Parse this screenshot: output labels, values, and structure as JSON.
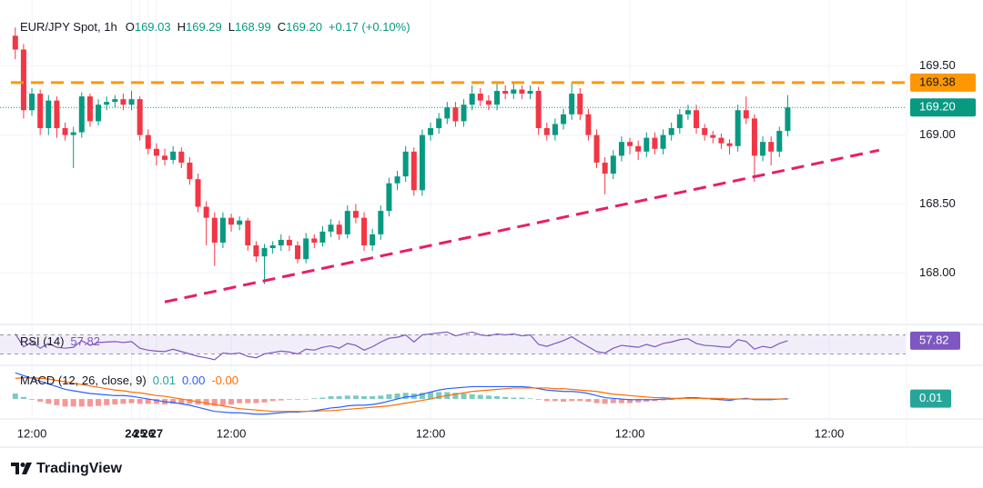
{
  "brand": "TradingView",
  "chart_data": {
    "type": "candlestick",
    "title": "EUR/JPY Spot, 1h",
    "legend": [
      {
        "key": "O",
        "value": "169.03"
      },
      {
        "key": "H",
        "value": "169.29"
      },
      {
        "key": "L",
        "value": "168.99"
      },
      {
        "key": "C",
        "value": "169.20"
      }
    ],
    "change": "+0.17 (+0.10%)",
    "x": [
      10,
      11,
      12,
      13,
      14,
      15,
      16,
      17,
      18,
      19,
      20,
      21,
      22,
      23,
      24,
      25,
      26,
      27,
      28,
      29,
      30,
      31,
      32,
      33,
      34,
      35,
      36,
      37,
      38,
      39,
      40,
      41,
      42,
      43,
      44,
      45,
      46,
      47,
      48,
      49,
      50,
      51,
      52,
      53,
      54,
      55,
      56,
      57,
      58,
      59,
      60,
      61,
      62,
      63,
      64,
      65,
      66,
      67,
      68,
      69,
      70,
      71,
      72,
      73,
      74,
      75,
      76,
      77,
      78,
      79,
      80,
      81,
      82,
      83,
      84,
      85,
      86,
      87,
      88,
      89,
      90,
      91,
      92,
      93,
      94,
      95,
      96,
      97,
      98,
      99,
      100,
      101,
      102,
      103
    ],
    "open": [
      169.72,
      169.62,
      169.18,
      169.3,
      169.05,
      169.25,
      169.05,
      169.0,
      169.02,
      169.28,
      169.1,
      169.22,
      169.24,
      169.26,
      169.22,
      169.26,
      169.0,
      168.9,
      168.85,
      168.82,
      168.88,
      168.8,
      168.68,
      168.48,
      168.4,
      168.22,
      168.4,
      168.35,
      168.38,
      168.2,
      168.12,
      168.18,
      168.2,
      168.24,
      168.2,
      168.1,
      168.25,
      168.22,
      168.3,
      168.35,
      168.28,
      168.45,
      168.4,
      168.2,
      168.28,
      168.45,
      168.65,
      168.7,
      168.88,
      168.6,
      169.0,
      169.05,
      169.12,
      169.2,
      169.1,
      169.22,
      169.3,
      169.25,
      169.22,
      169.32,
      169.3,
      169.33,
      169.3,
      169.32,
      169.05,
      169.0,
      169.08,
      169.15,
      169.3,
      169.15,
      169.0,
      168.8,
      168.72,
      168.85,
      168.95,
      168.92,
      168.88,
      168.98,
      168.9,
      169.0,
      169.05,
      169.15,
      169.18,
      169.05,
      169.0,
      168.98,
      168.94,
      168.92,
      169.18,
      169.12,
      168.85,
      168.95,
      168.88,
      169.03
    ],
    "high": [
      169.78,
      169.66,
      169.34,
      169.33,
      169.29,
      169.28,
      169.09,
      169.06,
      169.31,
      169.3,
      169.26,
      169.28,
      169.29,
      169.3,
      169.32,
      169.28,
      169.04,
      168.94,
      168.9,
      168.92,
      168.91,
      168.84,
      168.72,
      168.52,
      168.44,
      168.44,
      168.43,
      168.41,
      168.4,
      168.23,
      168.21,
      168.23,
      168.28,
      168.27,
      168.23,
      168.29,
      168.28,
      168.34,
      168.39,
      168.38,
      168.49,
      168.5,
      168.44,
      168.32,
      168.49,
      168.69,
      168.74,
      168.92,
      168.91,
      169.04,
      169.09,
      169.16,
      169.24,
      169.24,
      169.26,
      169.36,
      169.34,
      169.29,
      169.38,
      169.36,
      169.38,
      169.36,
      169.36,
      169.35,
      169.09,
      169.12,
      169.19,
      169.38,
      169.34,
      169.19,
      169.04,
      168.84,
      168.89,
      168.99,
      168.98,
      168.96,
      169.02,
      169.02,
      169.04,
      169.09,
      169.19,
      169.22,
      169.22,
      169.08,
      169.03,
      169.01,
      168.97,
      169.22,
      169.28,
      169.15,
      168.99,
      168.99,
      169.06,
      169.29
    ],
    "low": [
      169.55,
      169.12,
      169.14,
      169.0,
      169.0,
      168.98,
      168.96,
      168.76,
      168.98,
      169.06,
      169.07,
      169.18,
      169.2,
      169.18,
      169.18,
      168.96,
      168.86,
      168.78,
      168.78,
      168.79,
      168.76,
      168.64,
      168.44,
      168.2,
      168.05,
      168.18,
      168.3,
      168.31,
      168.16,
      168.08,
      167.92,
      168.14,
      168.16,
      168.16,
      168.07,
      168.07,
      168.18,
      168.19,
      168.26,
      168.24,
      168.25,
      168.36,
      168.16,
      168.16,
      168.24,
      168.41,
      168.6,
      168.66,
      168.56,
      168.56,
      168.96,
      169.01,
      169.08,
      169.06,
      169.06,
      169.18,
      169.21,
      169.18,
      169.18,
      169.26,
      169.26,
      169.26,
      169.26,
      169.0,
      168.96,
      168.96,
      169.04,
      169.11,
      169.11,
      168.96,
      168.76,
      168.57,
      168.68,
      168.81,
      168.86,
      168.82,
      168.84,
      168.86,
      168.86,
      168.96,
      169.01,
      169.11,
      169.01,
      168.96,
      168.94,
      168.9,
      168.86,
      168.88,
      169.08,
      168.66,
      168.81,
      168.78,
      168.84,
      168.99
    ],
    "close": [
      169.62,
      169.18,
      169.3,
      169.05,
      169.25,
      169.05,
      169.0,
      169.02,
      169.28,
      169.1,
      169.22,
      169.24,
      169.26,
      169.22,
      169.26,
      169.0,
      168.9,
      168.85,
      168.82,
      168.88,
      168.8,
      168.68,
      168.48,
      168.4,
      168.22,
      168.4,
      168.35,
      168.38,
      168.2,
      168.12,
      168.18,
      168.2,
      168.24,
      168.2,
      168.1,
      168.25,
      168.22,
      168.3,
      168.35,
      168.28,
      168.45,
      168.4,
      168.2,
      168.28,
      168.45,
      168.65,
      168.7,
      168.88,
      168.6,
      169.0,
      169.05,
      169.12,
      169.2,
      169.1,
      169.22,
      169.3,
      169.25,
      169.22,
      169.32,
      169.3,
      169.33,
      169.3,
      169.32,
      169.05,
      169.0,
      169.08,
      169.15,
      169.3,
      169.15,
      169.0,
      168.8,
      168.72,
      168.85,
      168.95,
      168.92,
      168.88,
      168.98,
      168.9,
      169.0,
      169.05,
      169.15,
      169.18,
      169.05,
      169.0,
      168.98,
      168.94,
      168.92,
      169.18,
      169.12,
      168.85,
      168.95,
      168.88,
      169.03,
      169.2
    ],
    "up_color": "#089981",
    "down_color": "#f23645",
    "xlim": [
      8.16,
      117.2
    ],
    "xticks": [
      {
        "value": 12,
        "label": "12:00"
      },
      24,
      {
        "value": 36,
        "label": "12:00"
      },
      25,
      {
        "value": 60,
        "label": "12:00"
      },
      26,
      {
        "value": 84,
        "label": "12:00"
      },
      27,
      {
        "value": 108,
        "label": "12:00"
      }
    ],
    "ylim": [
      167.64,
      169.9
    ],
    "yticks": [
      {
        "value": 168,
        "label": "168.00"
      },
      {
        "value": 168.5,
        "label": "168.50"
      },
      {
        "value": 169,
        "label": "169.00"
      },
      {
        "value": 169.5,
        "label": "169.50"
      }
    ],
    "grid": true,
    "resistance": {
      "value": 169.38,
      "color": "#ff9800"
    },
    "trendline": {
      "x": [
        28,
        114
      ],
      "y": [
        167.79,
        168.89
      ],
      "color": "#e91e63"
    },
    "last_price": {
      "value": 169.2,
      "label": "169.20"
    },
    "rsi": {
      "title": "RSI (14)",
      "color": "#7e57c2",
      "ylim": [
        10,
        90
      ],
      "bands": [
        30,
        70
      ],
      "values": [
        72,
        45,
        55,
        42,
        52,
        44,
        42,
        44,
        58,
        48,
        54,
        55,
        56,
        54,
        56,
        42,
        38,
        36,
        35,
        40,
        35,
        30,
        25,
        22,
        18,
        32,
        30,
        32,
        25,
        22,
        30,
        33,
        36,
        34,
        30,
        40,
        38,
        44,
        47,
        42,
        52,
        48,
        38,
        45,
        55,
        63,
        65,
        70,
        55,
        70,
        72,
        74,
        76,
        68,
        72,
        76,
        70,
        68,
        72,
        70,
        72,
        68,
        70,
        50,
        46,
        52,
        58,
        66,
        55,
        45,
        35,
        32,
        42,
        48,
        46,
        44,
        50,
        45,
        52,
        55,
        60,
        62,
        52,
        48,
        47,
        45,
        44,
        60,
        56,
        40,
        46,
        43,
        52,
        57.82
      ]
    },
    "macd": {
      "title": "MACD (12, 26, close, 9)",
      "ylim": [
        -0.25,
        0.45
      ],
      "histogram": {
        "value_label": "0.01",
        "up_color": "#26a69a",
        "down_color": "#ef5350",
        "values": [
          0.08,
          0.03,
          -0.01,
          -0.04,
          -0.07,
          -0.09,
          -0.11,
          -0.11,
          -0.11,
          -0.11,
          -0.1,
          -0.09,
          -0.08,
          -0.07,
          -0.06,
          -0.07,
          -0.07,
          -0.07,
          -0.08,
          -0.07,
          -0.07,
          -0.07,
          -0.08,
          -0.09,
          -0.1,
          -0.09,
          -0.08,
          -0.06,
          -0.06,
          -0.06,
          -0.05,
          -0.03,
          -0.02,
          -0.01,
          -0.01,
          0.0,
          0.01,
          0.02,
          0.04,
          0.04,
          0.05,
          0.05,
          0.04,
          0.04,
          0.05,
          0.07,
          0.08,
          0.09,
          0.08,
          0.09,
          0.1,
          0.1,
          0.1,
          0.09,
          0.08,
          0.07,
          0.06,
          0.05,
          0.04,
          0.03,
          0.02,
          0.02,
          0.01,
          -0.01,
          -0.03,
          -0.03,
          -0.04,
          -0.03,
          -0.03,
          -0.04,
          -0.06,
          -0.07,
          -0.06,
          -0.06,
          -0.06,
          -0.05,
          -0.04,
          -0.03,
          -0.02,
          -0.01,
          0.0,
          0.01,
          0.01,
          0.0,
          -0.01,
          -0.02,
          -0.02,
          0.0,
          0.01,
          -0.01,
          -0.01,
          -0.01,
          0.0,
          0.006
        ]
      },
      "macd": {
        "value_label": "0.00",
        "color": "#2962ff",
        "values": [
          0.38,
          0.34,
          0.3,
          0.26,
          0.22,
          0.18,
          0.14,
          0.12,
          0.1,
          0.08,
          0.07,
          0.06,
          0.05,
          0.05,
          0.04,
          0.02,
          0.0,
          -0.02,
          -0.04,
          -0.05,
          -0.07,
          -0.09,
          -0.12,
          -0.15,
          -0.18,
          -0.19,
          -0.2,
          -0.2,
          -0.21,
          -0.22,
          -0.22,
          -0.21,
          -0.2,
          -0.19,
          -0.19,
          -0.18,
          -0.17,
          -0.15,
          -0.13,
          -0.12,
          -0.1,
          -0.09,
          -0.09,
          -0.08,
          -0.06,
          -0.03,
          0.0,
          0.03,
          0.04,
          0.07,
          0.1,
          0.13,
          0.15,
          0.16,
          0.17,
          0.18,
          0.18,
          0.18,
          0.18,
          0.18,
          0.18,
          0.18,
          0.17,
          0.15,
          0.13,
          0.12,
          0.11,
          0.11,
          0.1,
          0.08,
          0.05,
          0.02,
          0.01,
          0.0,
          -0.01,
          -0.01,
          -0.01,
          -0.01,
          0.0,
          0.0,
          0.01,
          0.02,
          0.02,
          0.01,
          0.0,
          -0.01,
          -0.02,
          0.0,
          0.01,
          -0.01,
          -0.01,
          -0.01,
          0.0,
          0.004
        ]
      },
      "signal": {
        "value_label": "-0.00",
        "color": "#ff6d00",
        "values": [
          0.3,
          0.31,
          0.31,
          0.3,
          0.29,
          0.27,
          0.25,
          0.23,
          0.21,
          0.19,
          0.17,
          0.15,
          0.13,
          0.12,
          0.1,
          0.09,
          0.07,
          0.05,
          0.04,
          0.02,
          0.0,
          -0.02,
          -0.04,
          -0.06,
          -0.08,
          -0.1,
          -0.12,
          -0.14,
          -0.15,
          -0.16,
          -0.17,
          -0.18,
          -0.18,
          -0.18,
          -0.18,
          -0.18,
          -0.18,
          -0.17,
          -0.17,
          -0.16,
          -0.15,
          -0.14,
          -0.13,
          -0.12,
          -0.11,
          -0.1,
          -0.08,
          -0.06,
          -0.04,
          -0.02,
          0.0,
          0.03,
          0.05,
          0.07,
          0.09,
          0.11,
          0.12,
          0.13,
          0.14,
          0.15,
          0.16,
          0.16,
          0.16,
          0.16,
          0.16,
          0.15,
          0.15,
          0.14,
          0.13,
          0.12,
          0.11,
          0.09,
          0.07,
          0.06,
          0.05,
          0.04,
          0.03,
          0.02,
          0.02,
          0.01,
          0.01,
          0.01,
          0.01,
          0.01,
          0.01,
          0.01,
          0.0,
          0.0,
          0.0,
          0.0,
          0.0,
          0.0,
          0.0,
          -0.002
        ]
      }
    }
  }
}
